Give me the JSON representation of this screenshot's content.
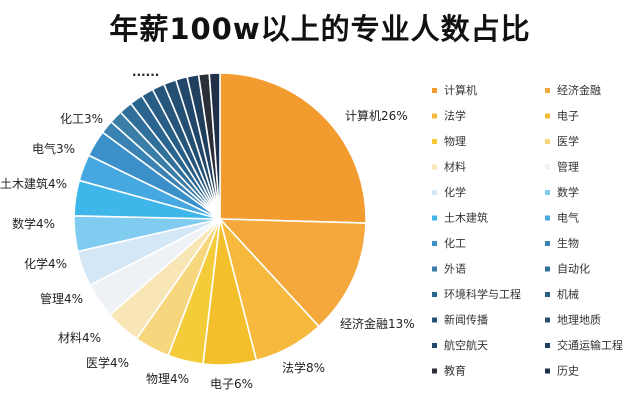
{
  "chart_data": {
    "type": "pie",
    "title": "年薪100w以上的专业人数占比",
    "start_angle_deg": 0,
    "direction": "clockwise",
    "slices": [
      {
        "name": "计算机",
        "value": 26,
        "label": "计算机26%",
        "color": "#f29b2e"
      },
      {
        "name": "经济金融",
        "value": 13,
        "label": "经济金融13%",
        "color": "#f5a93c"
      },
      {
        "name": "法学",
        "value": 8,
        "label": "法学8%",
        "color": "#f6b93e"
      },
      {
        "name": "电子",
        "value": 6,
        "label": "电子6%",
        "color": "#f3c02c"
      },
      {
        "name": "物理",
        "value": 4,
        "label": "物理4%",
        "color": "#f4cc3a"
      },
      {
        "name": "医学",
        "value": 4,
        "label": "医学4%",
        "color": "#f7d77e"
      },
      {
        "name": "材料",
        "value": 4,
        "label": "材料4%",
        "color": "#f9e6b6"
      },
      {
        "name": "管理",
        "value": 4,
        "label": "管理4%",
        "color": "#eef1f6"
      },
      {
        "name": "化学",
        "value": 4,
        "label": "化学4%",
        "color": "#d3e7f6"
      },
      {
        "name": "数学",
        "value": 4,
        "label": "数学4%",
        "color": "#7fccf0"
      },
      {
        "name": "土木建筑",
        "value": 4,
        "label": "土木建筑4%",
        "color": "#3fb6ea"
      },
      {
        "name": "电气",
        "value": 3,
        "label": "电气3%",
        "color": "#45a8e1"
      },
      {
        "name": "化工",
        "value": 3,
        "label": "化工3%",
        "color": "#3b90c9"
      },
      {
        "name": "生物",
        "value": 1.5,
        "label": "",
        "color": "#3a82b3"
      },
      {
        "name": "外语",
        "value": 1.5,
        "label": "",
        "color": "#3a7ea8"
      },
      {
        "name": "自动化",
        "value": 1.5,
        "label": "",
        "color": "#2f6f9a"
      },
      {
        "name": "环境科学与工程",
        "value": 1.5,
        "label": "",
        "color": "#2a6590"
      },
      {
        "name": "机械",
        "value": 1.4,
        "label": "",
        "color": "#285d85"
      },
      {
        "name": "新闻传播",
        "value": 1.4,
        "label": "",
        "color": "#25557a"
      },
      {
        "name": "地理地质",
        "value": 1.4,
        "label": "",
        "color": "#234f72"
      },
      {
        "name": "航空航天",
        "value": 1.3,
        "label": "",
        "color": "#21486a"
      },
      {
        "name": "交通运输工程",
        "value": 1.3,
        "label": "",
        "color": "#1f3f5f"
      },
      {
        "name": "教育",
        "value": 1.2,
        "label": "",
        "color": "#2a2e36"
      },
      {
        "name": "历史",
        "value": 1.2,
        "label": "",
        "color": "#1f2f48"
      }
    ],
    "ellipsis_label": "......",
    "legend": {
      "placement": "right",
      "entries": [
        {
          "name": "计算机",
          "color": "#f29b2e"
        },
        {
          "name": "经济金融",
          "color": "#f5a93c"
        },
        {
          "name": "法学",
          "color": "#f6b93e"
        },
        {
          "name": "电子",
          "color": "#f3c02c"
        },
        {
          "name": "物理",
          "color": "#f4cc3a"
        },
        {
          "name": "医学",
          "color": "#f7d77e"
        },
        {
          "name": "材料",
          "color": "#f9e6b6"
        },
        {
          "name": "管理",
          "color": "#eef1f6"
        },
        {
          "name": "化学",
          "color": "#d3e7f6"
        },
        {
          "name": "数学",
          "color": "#7fccf0"
        },
        {
          "name": "土木建筑",
          "color": "#3fb6ea"
        },
        {
          "name": "电气",
          "color": "#45a8e1"
        },
        {
          "name": "化工",
          "color": "#3b90c9"
        },
        {
          "name": "生物",
          "color": "#3a82b3"
        },
        {
          "name": "外语",
          "color": "#3a7ea8"
        },
        {
          "name": "自动化",
          "color": "#2f6f9a"
        },
        {
          "name": "环境科学与工程",
          "color": "#2a6590"
        },
        {
          "name": "机械",
          "color": "#285d85"
        },
        {
          "name": "新闻传播",
          "color": "#25557a"
        },
        {
          "name": "地理地质",
          "color": "#234f72"
        },
        {
          "name": "航空航天",
          "color": "#21486a"
        },
        {
          "name": "交通运输工程",
          "color": "#1f3f5f"
        },
        {
          "name": "教育",
          "color": "#2a2e36"
        },
        {
          "name": "历史",
          "color": "#1f2f48"
        }
      ]
    }
  }
}
